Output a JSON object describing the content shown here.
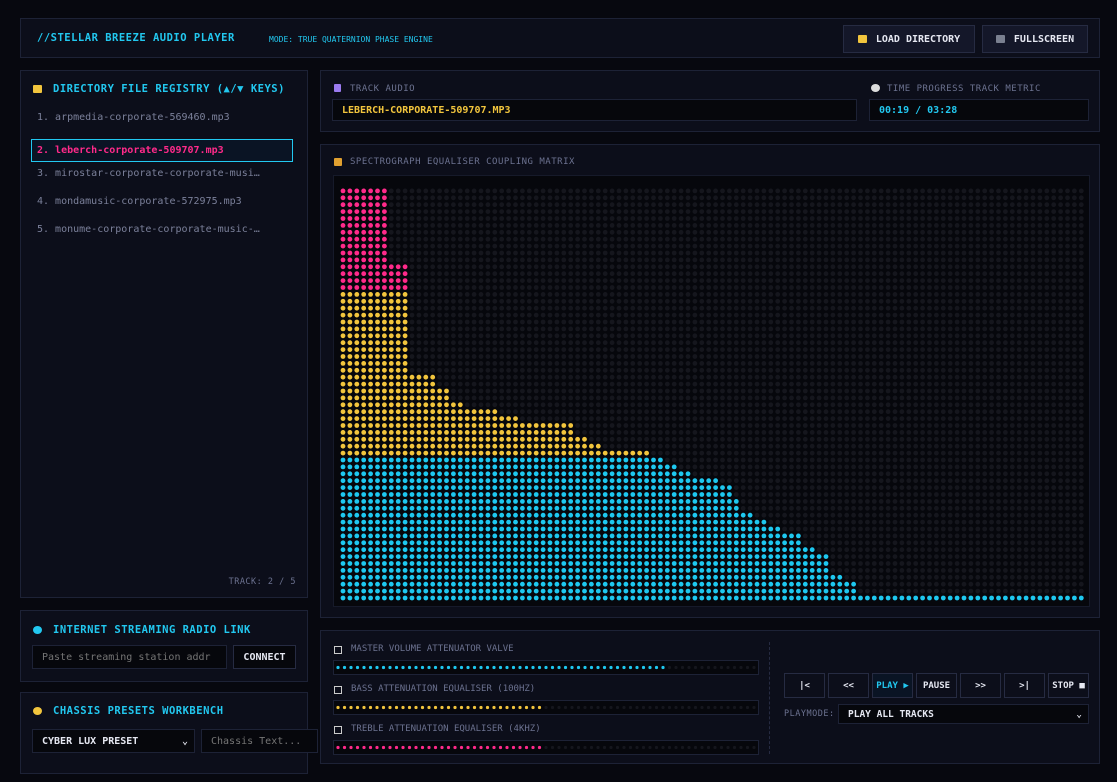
{
  "header": {
    "title": "//STELLAR BREEZE AUDIO PLAYER",
    "mode": "MODE: TRUE QUATERNION PHASE ENGINE",
    "buttons": [
      "LOAD DIRECTORY",
      "FULLSCREEN"
    ]
  },
  "directory": {
    "title": "DIRECTORY FILE REGISTRY (▲/▼ KEYS)",
    "files": [
      "1. arpmedia-corporate-569460.mp3",
      "2. leberch-corporate-509707.mp3",
      "3. mirostar-corporate-corporate-musi…",
      "4. mondamusic-corporate-572975.mp3",
      "5. monume-corporate-corporate-music-…"
    ],
    "selected": 1,
    "status": "TRACK: 2 / 5"
  },
  "radio": {
    "title": "INTERNET STREAMING RADIO LINK",
    "placeholder": "Paste streaming station addr",
    "button": "CONNECT"
  },
  "presets": {
    "title": "CHASSIS PRESETS WORKBENCH",
    "preset": "CYBER LUX PRESET",
    "placeholder": "Chassis Text..."
  },
  "track": {
    "label": "TRACK AUDIO",
    "name": "LEBERCH-CORPORATE-509707.MP3",
    "time_label": "TIME PROGRESS TRACK METRIC",
    "time": "00:19 / 03:28"
  },
  "spectrograph": {
    "title": "SPECTROGRAPH EQUALISER COUPLING MATRIX",
    "levels": [
      60,
      60,
      60,
      60,
      60,
      60,
      60,
      49,
      49,
      49,
      33,
      33,
      33,
      33,
      31,
      31,
      29,
      29,
      28,
      28,
      28,
      28,
      28,
      27,
      27,
      27,
      26,
      26,
      26,
      26,
      26,
      26,
      26,
      26,
      24,
      24,
      23,
      23,
      22,
      22,
      22,
      22,
      22,
      22,
      22,
      21,
      21,
      20,
      20,
      19,
      19,
      18,
      18,
      18,
      18,
      17,
      17,
      15,
      13,
      13,
      12,
      12,
      11,
      11,
      10,
      10,
      10,
      8,
      8,
      7,
      7,
      4,
      4,
      3,
      3,
      1,
      1,
      1,
      1,
      1,
      1,
      1,
      1,
      1,
      1,
      1,
      1,
      1,
      1,
      1,
      1,
      1,
      1,
      1,
      1,
      1,
      1,
      1,
      1,
      1,
      1,
      1,
      1,
      1,
      1,
      1,
      1,
      1
    ]
  },
  "mixer": {
    "sliders": [
      {
        "label": "MASTER VOLUME ATTENUATOR VALVE",
        "level": 78
      },
      {
        "label": "BASS ATTENUATION EQUALISER (100HZ)",
        "level": 49
      },
      {
        "label": "TREBLE ATTENUATION EQUALISER (4KHZ)",
        "level": 49
      }
    ],
    "transport": [
      "|<",
      "<<",
      "PLAY ▶",
      "PAUSE",
      ">>",
      ">|",
      "STOP ■"
    ],
    "active": 2,
    "playmode_label": "PLAYMODE:",
    "playmode": "PLAY ALL TRACKS"
  }
}
